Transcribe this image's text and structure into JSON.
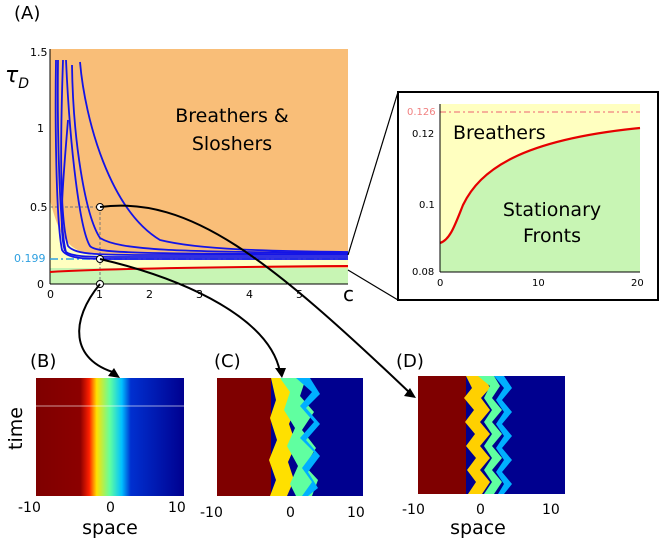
{
  "panels": {
    "A": {
      "label": "(A)",
      "ylabel_sym": "τ",
      "ylabel_sub": "D",
      "xlabel": "c",
      "xticks": [
        "0",
        "1",
        "2",
        "3",
        "4",
        "5"
      ],
      "yticks": [
        "0",
        "0.5",
        "1",
        "1.5"
      ],
      "special_ytick": "0.199",
      "region_top": [
        "Breathers &",
        "Sloshers"
      ],
      "colors": {
        "top_region": "#f9be78",
        "mid_region": "#ffffc0",
        "bottom_region": "#c8f5b4",
        "blue_curves": "#1414e6",
        "red_curve": "#e60000",
        "cyan_line": "#2ea0e0"
      }
    },
    "inset": {
      "xticks": [
        "0",
        "10",
        "20"
      ],
      "yticks": [
        "0.08",
        "0.1",
        "0.12"
      ],
      "special_ytick": "0.126",
      "region_top": "Breathers",
      "region_bottom": [
        "Stationary",
        "Fronts"
      ]
    },
    "B": {
      "label": "(B)"
    },
    "C": {
      "label": "(C)"
    },
    "D": {
      "label": "(D)"
    },
    "bottom_axis": {
      "ylabel": "time",
      "xlabel": "space",
      "xticks": [
        "-10",
        "0",
        "10"
      ]
    }
  }
}
